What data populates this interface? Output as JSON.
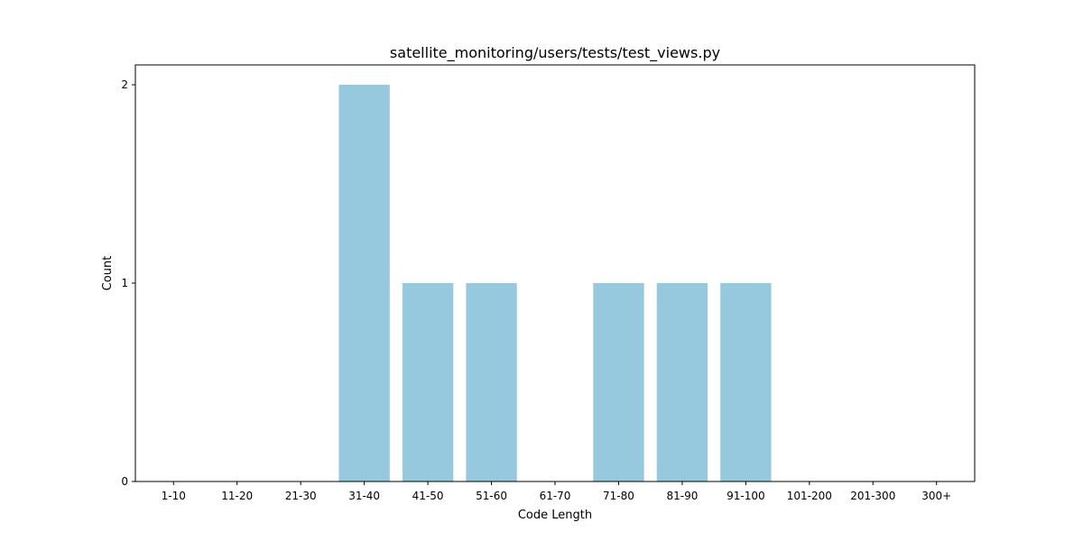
{
  "chart_data": {
    "type": "bar",
    "title": "satellite_monitoring/users/tests/test_views.py",
    "xlabel": "Code Length",
    "ylabel": "Count",
    "categories": [
      "1-10",
      "11-20",
      "21-30",
      "31-40",
      "41-50",
      "51-60",
      "61-70",
      "71-80",
      "81-90",
      "91-100",
      "101-200",
      "201-300",
      "300+"
    ],
    "values": [
      0,
      0,
      0,
      2,
      1,
      1,
      0,
      1,
      1,
      1,
      0,
      0,
      0
    ],
    "ylim": [
      0,
      2.1
    ],
    "yticks": [
      0,
      1,
      2
    ],
    "grid": false,
    "legend": "none",
    "bar_color": "#96c9de"
  }
}
